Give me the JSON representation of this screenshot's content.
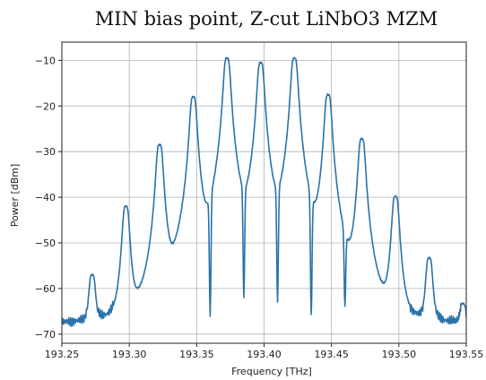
{
  "chart_data": {
    "type": "line",
    "title": "MIN bias point, Z-cut LiNbO3 MZM",
    "xlabel": "Frequency [THz]",
    "ylabel": "Power [dBm]",
    "xlim": [
      193.25,
      193.55
    ],
    "ylim": [
      -72,
      -6
    ],
    "xticks": [
      193.25,
      193.3,
      193.35,
      193.4,
      193.45,
      193.5,
      193.55
    ],
    "xtick_labels": [
      "193.25",
      "193.30",
      "193.35",
      "193.40",
      "193.45",
      "193.50",
      "193.55"
    ],
    "yticks": [
      -10,
      -20,
      -30,
      -40,
      -50,
      -60,
      -70
    ],
    "ytick_labels": [
      "−10",
      "−20",
      "−30",
      "−40",
      "−50",
      "−60",
      "−70"
    ],
    "grid": true,
    "line_color": "#2a72a8",
    "noise_floor": -67.8,
    "peaks": [
      {
        "x": 193.2725,
        "y": -57.5
      },
      {
        "x": 193.2975,
        "y": -42
      },
      {
        "x": 193.3225,
        "y": -28.5
      },
      {
        "x": 193.3475,
        "y": -18
      },
      {
        "x": 193.3725,
        "y": -9.5
      },
      {
        "x": 193.3975,
        "y": -10.5
      },
      {
        "x": 193.4225,
        "y": -9.5
      },
      {
        "x": 193.4475,
        "y": -17.5
      },
      {
        "x": 193.4725,
        "y": -27.2
      },
      {
        "x": 193.4975,
        "y": -39.8
      },
      {
        "x": 193.5225,
        "y": -53.5
      },
      {
        "x": 193.5475,
        "y": -65.5
      }
    ],
    "dips": [
      {
        "x": 193.385,
        "y": -62
      },
      {
        "x": 193.41,
        "y": -63
      },
      {
        "x": 193.36,
        "y": -66
      },
      {
        "x": 193.435,
        "y": -66
      },
      {
        "x": 193.46,
        "y": -64
      }
    ]
  }
}
